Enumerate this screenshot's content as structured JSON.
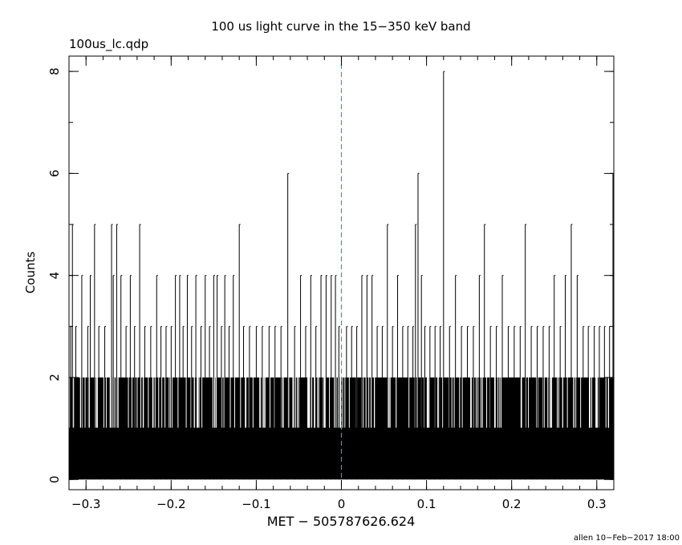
{
  "chart_data": {
    "type": "bar",
    "title": "100 us light curve in the 15−350 keV band",
    "subtitle": "100us_lc.qdp",
    "xlabel": "MET − 505787626.624",
    "ylabel": "Counts",
    "footer": "allen 10−Feb−2017 18:00",
    "xlim": [
      -0.32,
      0.32
    ],
    "ylim": [
      -0.2,
      8.3
    ],
    "x_ticks": [
      -0.3,
      -0.2,
      -0.1,
      0,
      0.1,
      0.2,
      0.3
    ],
    "x_tick_labels": [
      "−0.3",
      "−0.2",
      "−0.1",
      "0",
      "0.1",
      "0.2",
      "0.3"
    ],
    "y_ticks": [
      0,
      2,
      4,
      6,
      8
    ],
    "y_tick_labels": [
      "0",
      "2",
      "4",
      "6",
      "8"
    ],
    "grid": false,
    "legend": "none",
    "series_color": "#000000",
    "reference_line": {
      "x": 0,
      "style": "dashed",
      "color": "#3399cc"
    },
    "bin_width": 0.0001,
    "background_level": 2,
    "peaks": [
      {
        "x": -0.318,
        "y": 3
      },
      {
        "x": -0.316,
        "y": 5
      },
      {
        "x": -0.312,
        "y": 3
      },
      {
        "x": -0.305,
        "y": 4
      },
      {
        "x": -0.298,
        "y": 3
      },
      {
        "x": -0.295,
        "y": 4
      },
      {
        "x": -0.29,
        "y": 5
      },
      {
        "x": -0.285,
        "y": 3
      },
      {
        "x": -0.278,
        "y": 3
      },
      {
        "x": -0.27,
        "y": 5
      },
      {
        "x": -0.268,
        "y": 4
      },
      {
        "x": -0.264,
        "y": 5
      },
      {
        "x": -0.259,
        "y": 4
      },
      {
        "x": -0.253,
        "y": 3
      },
      {
        "x": -0.248,
        "y": 4
      },
      {
        "x": -0.243,
        "y": 3
      },
      {
        "x": -0.237,
        "y": 5
      },
      {
        "x": -0.231,
        "y": 3
      },
      {
        "x": -0.224,
        "y": 3
      },
      {
        "x": -0.217,
        "y": 4
      },
      {
        "x": -0.212,
        "y": 3
      },
      {
        "x": -0.206,
        "y": 3
      },
      {
        "x": -0.2,
        "y": 3
      },
      {
        "x": -0.195,
        "y": 4
      },
      {
        "x": -0.19,
        "y": 4
      },
      {
        "x": -0.186,
        "y": 3
      },
      {
        "x": -0.181,
        "y": 4
      },
      {
        "x": -0.176,
        "y": 3
      },
      {
        "x": -0.171,
        "y": 4
      },
      {
        "x": -0.165,
        "y": 3
      },
      {
        "x": -0.16,
        "y": 4
      },
      {
        "x": -0.155,
        "y": 3
      },
      {
        "x": -0.15,
        "y": 4
      },
      {
        "x": -0.146,
        "y": 4
      },
      {
        "x": -0.141,
        "y": 3
      },
      {
        "x": -0.137,
        "y": 4
      },
      {
        "x": -0.132,
        "y": 3
      },
      {
        "x": -0.127,
        "y": 4
      },
      {
        "x": -0.12,
        "y": 5
      },
      {
        "x": -0.115,
        "y": 3
      },
      {
        "x": -0.108,
        "y": 3
      },
      {
        "x": -0.1,
        "y": 3
      },
      {
        "x": -0.093,
        "y": 3
      },
      {
        "x": -0.085,
        "y": 3
      },
      {
        "x": -0.078,
        "y": 3
      },
      {
        "x": -0.071,
        "y": 3
      },
      {
        "x": -0.063,
        "y": 6
      },
      {
        "x": -0.055,
        "y": 3
      },
      {
        "x": -0.048,
        "y": 4
      },
      {
        "x": -0.042,
        "y": 3
      },
      {
        "x": -0.036,
        "y": 4
      },
      {
        "x": -0.03,
        "y": 3
      },
      {
        "x": -0.024,
        "y": 4
      },
      {
        "x": -0.018,
        "y": 4
      },
      {
        "x": -0.012,
        "y": 4
      },
      {
        "x": -0.007,
        "y": 4
      },
      {
        "x": -0.003,
        "y": 3
      },
      {
        "x": 0.006,
        "y": 3
      },
      {
        "x": 0.012,
        "y": 3
      },
      {
        "x": 0.018,
        "y": 3
      },
      {
        "x": 0.024,
        "y": 4
      },
      {
        "x": 0.03,
        "y": 4
      },
      {
        "x": 0.036,
        "y": 4
      },
      {
        "x": 0.042,
        "y": 3
      },
      {
        "x": 0.048,
        "y": 3
      },
      {
        "x": 0.054,
        "y": 5
      },
      {
        "x": 0.06,
        "y": 3
      },
      {
        "x": 0.066,
        "y": 4
      },
      {
        "x": 0.072,
        "y": 3
      },
      {
        "x": 0.078,
        "y": 3
      },
      {
        "x": 0.084,
        "y": 3
      },
      {
        "x": 0.087,
        "y": 5
      },
      {
        "x": 0.09,
        "y": 6
      },
      {
        "x": 0.094,
        "y": 4
      },
      {
        "x": 0.098,
        "y": 3
      },
      {
        "x": 0.104,
        "y": 3
      },
      {
        "x": 0.11,
        "y": 3
      },
      {
        "x": 0.116,
        "y": 3
      },
      {
        "x": 0.12,
        "y": 8
      },
      {
        "x": 0.127,
        "y": 3
      },
      {
        "x": 0.134,
        "y": 4
      },
      {
        "x": 0.141,
        "y": 3
      },
      {
        "x": 0.148,
        "y": 3
      },
      {
        "x": 0.155,
        "y": 3
      },
      {
        "x": 0.162,
        "y": 4
      },
      {
        "x": 0.168,
        "y": 5
      },
      {
        "x": 0.175,
        "y": 3
      },
      {
        "x": 0.182,
        "y": 3
      },
      {
        "x": 0.189,
        "y": 4
      },
      {
        "x": 0.196,
        "y": 3
      },
      {
        "x": 0.203,
        "y": 3
      },
      {
        "x": 0.21,
        "y": 3
      },
      {
        "x": 0.216,
        "y": 5
      },
      {
        "x": 0.223,
        "y": 3
      },
      {
        "x": 0.23,
        "y": 3
      },
      {
        "x": 0.237,
        "y": 3
      },
      {
        "x": 0.244,
        "y": 3
      },
      {
        "x": 0.25,
        "y": 4
      },
      {
        "x": 0.257,
        "y": 3
      },
      {
        "x": 0.263,
        "y": 4
      },
      {
        "x": 0.27,
        "y": 5
      },
      {
        "x": 0.277,
        "y": 4
      },
      {
        "x": 0.284,
        "y": 3
      },
      {
        "x": 0.29,
        "y": 3
      },
      {
        "x": 0.297,
        "y": 3
      },
      {
        "x": 0.303,
        "y": 3
      },
      {
        "x": 0.309,
        "y": 3
      },
      {
        "x": 0.315,
        "y": 3
      },
      {
        "x": 0.319,
        "y": 6
      }
    ]
  }
}
